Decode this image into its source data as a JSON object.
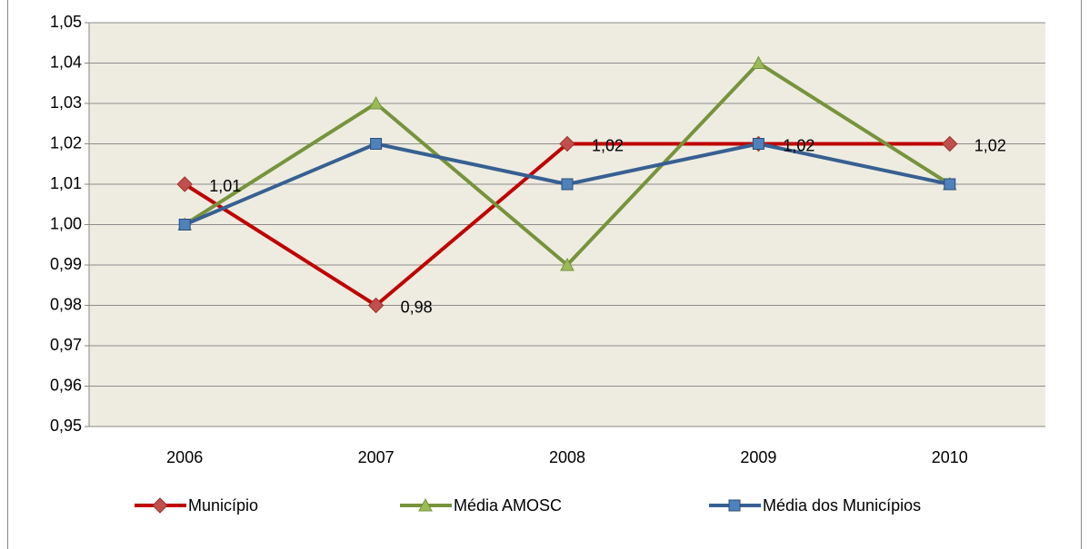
{
  "chart_data": {
    "type": "line",
    "categories": [
      "2006",
      "2007",
      "2008",
      "2009",
      "2010"
    ],
    "series": [
      {
        "name": "Município",
        "color": "#c00000",
        "marker_color": "#c0504d",
        "marker": "diamond",
        "values": [
          1.01,
          0.98,
          1.02,
          1.02,
          1.02
        ],
        "value_labels": [
          "1,01",
          "0,98",
          "1,02",
          "1,02",
          "1,02"
        ]
      },
      {
        "name": "Média AMOSC",
        "color": "#77933c",
        "marker_color": "#9bbb59",
        "marker": "triangle",
        "values": [
          1.0,
          1.03,
          0.99,
          1.04,
          1.01
        ]
      },
      {
        "name": "Média dos Municípios",
        "color": "#376092",
        "marker_color": "#4f81bd",
        "marker": "square",
        "values": [
          1.0,
          1.02,
          1.01,
          1.02,
          1.01
        ]
      }
    ],
    "ylim": [
      0.95,
      1.05
    ],
    "yticks": [
      {
        "value": 0.95,
        "label": "0,95"
      },
      {
        "value": 0.96,
        "label": "0,96"
      },
      {
        "value": 0.97,
        "label": "0,97"
      },
      {
        "value": 0.98,
        "label": "0,98"
      },
      {
        "value": 0.99,
        "label": "0,99"
      },
      {
        "value": 1.0,
        "label": "1,00"
      },
      {
        "value": 1.01,
        "label": "1,01"
      },
      {
        "value": 1.02,
        "label": "1,02"
      },
      {
        "value": 1.03,
        "label": "1,03"
      },
      {
        "value": 1.04,
        "label": "1,04"
      },
      {
        "value": 1.05,
        "label": "1,05"
      }
    ],
    "grid": true,
    "legend": "bottom",
    "plot_background": "#eeece1"
  }
}
